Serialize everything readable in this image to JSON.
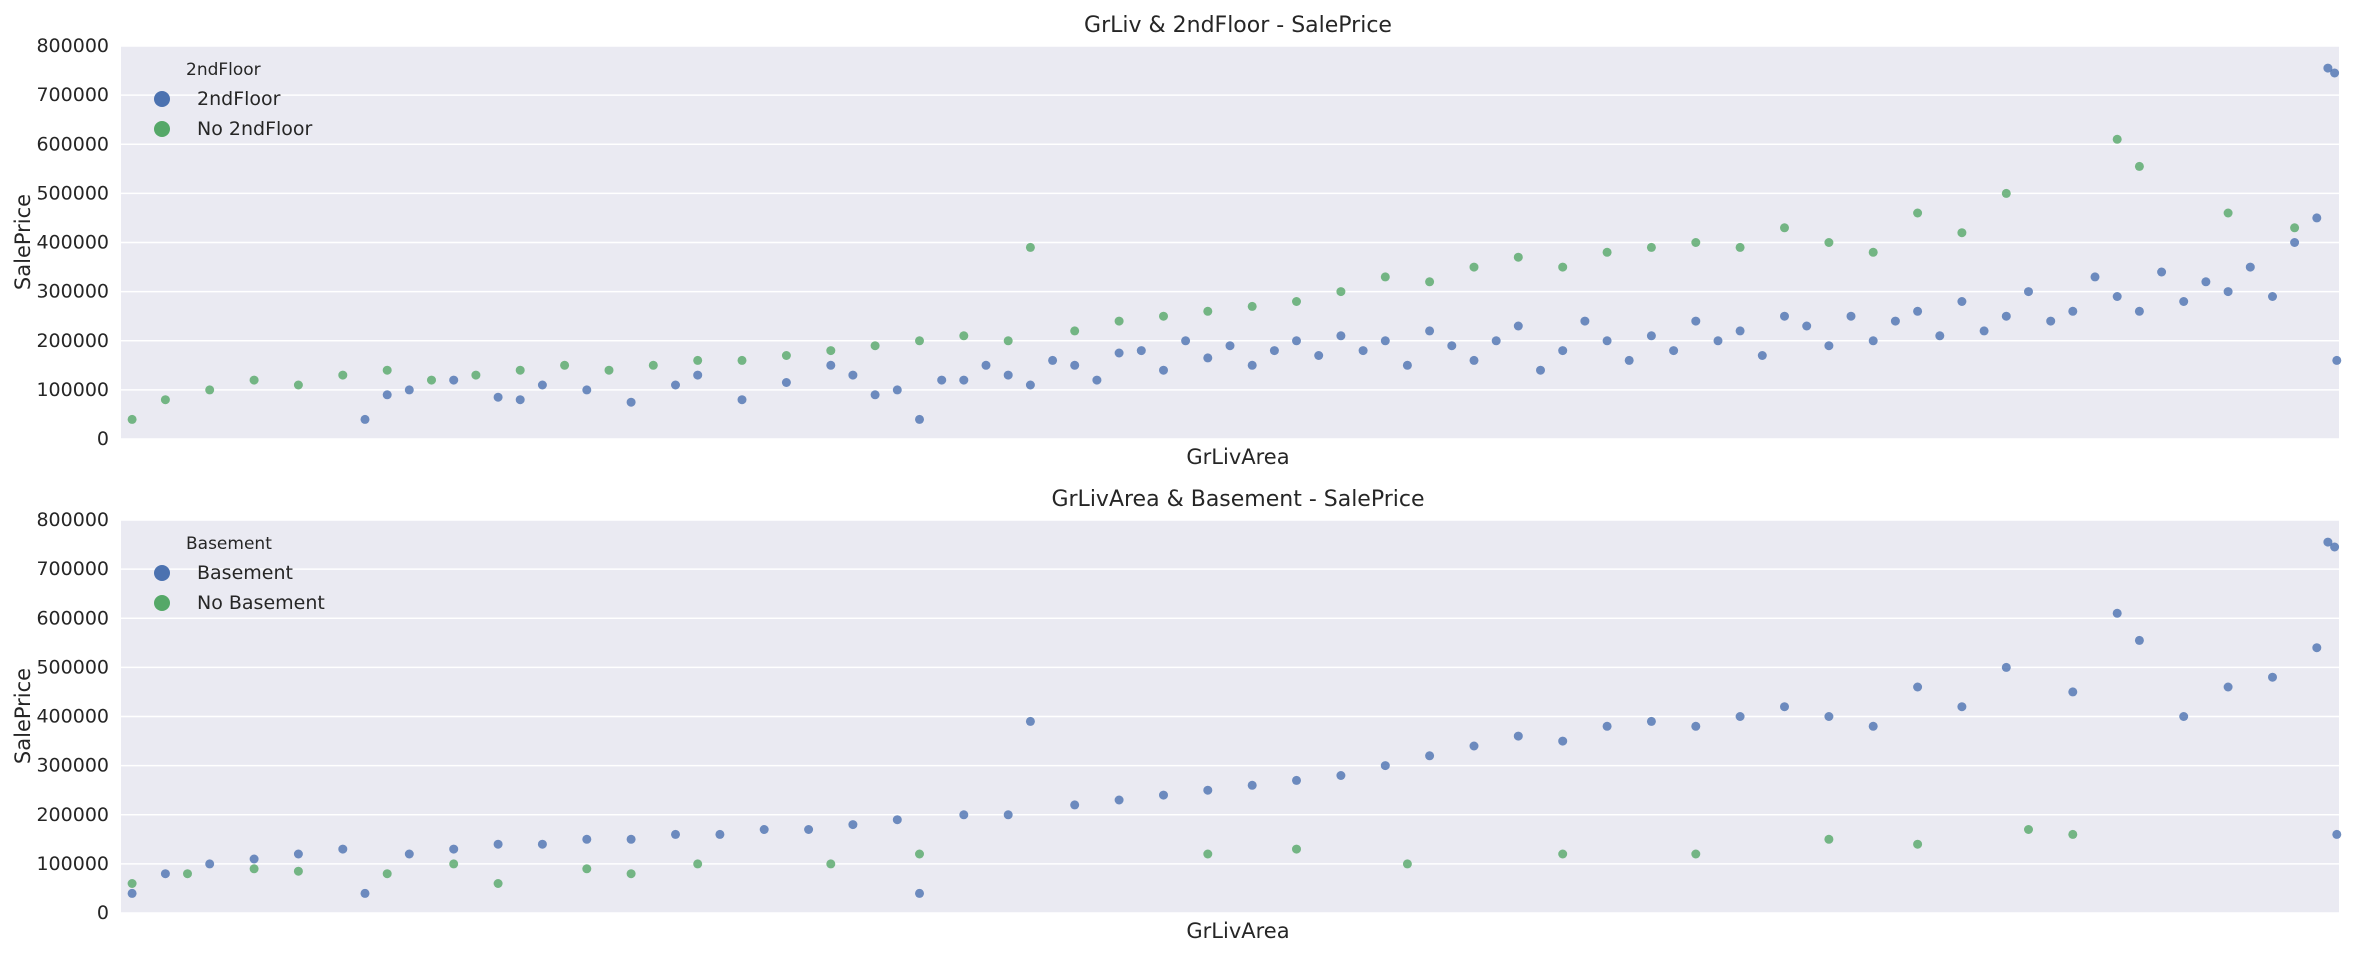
{
  "colors": {
    "background": "#eaeaf2",
    "grid": "#ffffff",
    "blue": "#4c72b0",
    "green": "#55a868"
  },
  "chart_data": [
    {
      "type": "scatter",
      "title": "GrLiv & 2ndFloor - SalePrice",
      "xlabel": "GrLivArea",
      "ylabel": "SalePrice",
      "ylim": [
        0,
        800000
      ],
      "yticks": [
        "0",
        "100000",
        "200000",
        "300000",
        "400000",
        "500000",
        "600000",
        "700000",
        "800000"
      ],
      "x_tick_labels_shown": false,
      "grid": true,
      "legend": {
        "title": "2ndFloor",
        "placement": "top-left",
        "entries": [
          {
            "label": "2ndFloor",
            "color": "#4c72b0"
          },
          {
            "label": "No 2ndFloor",
            "color": "#55a868"
          }
        ]
      },
      "series": [
        {
          "name": "2ndFloor",
          "color": "#4c72b0",
          "description": "houses with a second floor; x = GrLivArea position (0–1 rank along axis), y = SalePrice",
          "points": [
            [
              0.11,
              40000
            ],
            [
              0.12,
              90000
            ],
            [
              0.13,
              100000
            ],
            [
              0.15,
              120000
            ],
            [
              0.17,
              85000
            ],
            [
              0.18,
              80000
            ],
            [
              0.19,
              110000
            ],
            [
              0.21,
              100000
            ],
            [
              0.23,
              75000
            ],
            [
              0.25,
              110000
            ],
            [
              0.26,
              130000
            ],
            [
              0.28,
              80000
            ],
            [
              0.3,
              115000
            ],
            [
              0.32,
              150000
            ],
            [
              0.33,
              130000
            ],
            [
              0.34,
              90000
            ],
            [
              0.35,
              100000
            ],
            [
              0.36,
              40000
            ],
            [
              0.37,
              120000
            ],
            [
              0.38,
              120000
            ],
            [
              0.39,
              150000
            ],
            [
              0.4,
              130000
            ],
            [
              0.41,
              110000
            ],
            [
              0.42,
              160000
            ],
            [
              0.43,
              150000
            ],
            [
              0.44,
              120000
            ],
            [
              0.45,
              175000
            ],
            [
              0.46,
              180000
            ],
            [
              0.47,
              140000
            ],
            [
              0.48,
              200000
            ],
            [
              0.49,
              165000
            ],
            [
              0.5,
              190000
            ],
            [
              0.51,
              150000
            ],
            [
              0.52,
              180000
            ],
            [
              0.53,
              200000
            ],
            [
              0.54,
              170000
            ],
            [
              0.55,
              210000
            ],
            [
              0.56,
              180000
            ],
            [
              0.57,
              200000
            ],
            [
              0.58,
              150000
            ],
            [
              0.59,
              220000
            ],
            [
              0.6,
              190000
            ],
            [
              0.61,
              160000
            ],
            [
              0.62,
              200000
            ],
            [
              0.63,
              230000
            ],
            [
              0.64,
              140000
            ],
            [
              0.65,
              180000
            ],
            [
              0.66,
              240000
            ],
            [
              0.67,
              200000
            ],
            [
              0.68,
              160000
            ],
            [
              0.69,
              210000
            ],
            [
              0.7,
              180000
            ],
            [
              0.71,
              240000
            ],
            [
              0.72,
              200000
            ],
            [
              0.73,
              220000
            ],
            [
              0.74,
              170000
            ],
            [
              0.75,
              250000
            ],
            [
              0.76,
              230000
            ],
            [
              0.77,
              190000
            ],
            [
              0.78,
              250000
            ],
            [
              0.79,
              200000
            ],
            [
              0.8,
              240000
            ],
            [
              0.81,
              260000
            ],
            [
              0.82,
              210000
            ],
            [
              0.83,
              280000
            ],
            [
              0.84,
              220000
            ],
            [
              0.85,
              250000
            ],
            [
              0.86,
              300000
            ],
            [
              0.87,
              240000
            ],
            [
              0.88,
              260000
            ],
            [
              0.89,
              330000
            ],
            [
              0.9,
              290000
            ],
            [
              0.91,
              260000
            ],
            [
              0.92,
              340000
            ],
            [
              0.93,
              280000
            ],
            [
              0.94,
              320000
            ],
            [
              0.95,
              300000
            ],
            [
              0.96,
              350000
            ],
            [
              0.97,
              290000
            ],
            [
              0.98,
              400000
            ],
            [
              0.99,
              450000
            ],
            [
              0.995,
              755000
            ],
            [
              0.998,
              745000
            ],
            [
              0.999,
              160000
            ]
          ]
        },
        {
          "name": "No 2ndFloor",
          "color": "#55a868",
          "description": "houses without a second floor",
          "points": [
            [
              0.005,
              40000
            ],
            [
              0.02,
              80000
            ],
            [
              0.04,
              100000
            ],
            [
              0.06,
              120000
            ],
            [
              0.08,
              110000
            ],
            [
              0.1,
              130000
            ],
            [
              0.12,
              140000
            ],
            [
              0.14,
              120000
            ],
            [
              0.16,
              130000
            ],
            [
              0.18,
              140000
            ],
            [
              0.2,
              150000
            ],
            [
              0.22,
              140000
            ],
            [
              0.24,
              150000
            ],
            [
              0.26,
              160000
            ],
            [
              0.28,
              160000
            ],
            [
              0.3,
              170000
            ],
            [
              0.32,
              180000
            ],
            [
              0.34,
              190000
            ],
            [
              0.36,
              200000
            ],
            [
              0.38,
              210000
            ],
            [
              0.4,
              200000
            ],
            [
              0.41,
              390000
            ],
            [
              0.43,
              220000
            ],
            [
              0.45,
              240000
            ],
            [
              0.47,
              250000
            ],
            [
              0.49,
              260000
            ],
            [
              0.51,
              270000
            ],
            [
              0.53,
              280000
            ],
            [
              0.55,
              300000
            ],
            [
              0.57,
              330000
            ],
            [
              0.59,
              320000
            ],
            [
              0.61,
              350000
            ],
            [
              0.63,
              370000
            ],
            [
              0.65,
              350000
            ],
            [
              0.67,
              380000
            ],
            [
              0.69,
              390000
            ],
            [
              0.71,
              400000
            ],
            [
              0.73,
              390000
            ],
            [
              0.75,
              430000
            ],
            [
              0.77,
              400000
            ],
            [
              0.79,
              380000
            ],
            [
              0.81,
              460000
            ],
            [
              0.83,
              420000
            ],
            [
              0.85,
              500000
            ],
            [
              0.9,
              610000
            ],
            [
              0.91,
              555000
            ],
            [
              0.95,
              460000
            ],
            [
              0.98,
              430000
            ]
          ]
        }
      ]
    },
    {
      "type": "scatter",
      "title": "GrLivArea & Basement - SalePrice",
      "xlabel": "GrLivArea",
      "ylabel": "SalePrice",
      "ylim": [
        0,
        800000
      ],
      "yticks": [
        "0",
        "100000",
        "200000",
        "300000",
        "400000",
        "500000",
        "600000",
        "700000",
        "800000"
      ],
      "x_tick_labels_shown": false,
      "grid": true,
      "legend": {
        "title": "Basement",
        "placement": "top-left",
        "entries": [
          {
            "label": "Basement",
            "color": "#4c72b0"
          },
          {
            "label": "No Basement",
            "color": "#55a868"
          }
        ]
      },
      "series": [
        {
          "name": "Basement",
          "color": "#4c72b0",
          "description": "houses with a basement (nearly all points)",
          "points": [
            [
              0.005,
              40000
            ],
            [
              0.02,
              80000
            ],
            [
              0.04,
              100000
            ],
            [
              0.06,
              110000
            ],
            [
              0.08,
              120000
            ],
            [
              0.1,
              130000
            ],
            [
              0.11,
              40000
            ],
            [
              0.13,
              120000
            ],
            [
              0.15,
              130000
            ],
            [
              0.17,
              140000
            ],
            [
              0.19,
              140000
            ],
            [
              0.21,
              150000
            ],
            [
              0.23,
              150000
            ],
            [
              0.25,
              160000
            ],
            [
              0.27,
              160000
            ],
            [
              0.29,
              170000
            ],
            [
              0.31,
              170000
            ],
            [
              0.33,
              180000
            ],
            [
              0.35,
              190000
            ],
            [
              0.36,
              40000
            ],
            [
              0.38,
              200000
            ],
            [
              0.4,
              200000
            ],
            [
              0.41,
              390000
            ],
            [
              0.43,
              220000
            ],
            [
              0.45,
              230000
            ],
            [
              0.47,
              240000
            ],
            [
              0.49,
              250000
            ],
            [
              0.51,
              260000
            ],
            [
              0.53,
              270000
            ],
            [
              0.55,
              280000
            ],
            [
              0.57,
              300000
            ],
            [
              0.59,
              320000
            ],
            [
              0.61,
              340000
            ],
            [
              0.63,
              360000
            ],
            [
              0.65,
              350000
            ],
            [
              0.67,
              380000
            ],
            [
              0.69,
              390000
            ],
            [
              0.71,
              380000
            ],
            [
              0.73,
              400000
            ],
            [
              0.75,
              420000
            ],
            [
              0.77,
              400000
            ],
            [
              0.79,
              380000
            ],
            [
              0.81,
              460000
            ],
            [
              0.83,
              420000
            ],
            [
              0.85,
              500000
            ],
            [
              0.88,
              450000
            ],
            [
              0.9,
              610000
            ],
            [
              0.91,
              555000
            ],
            [
              0.93,
              400000
            ],
            [
              0.95,
              460000
            ],
            [
              0.97,
              480000
            ],
            [
              0.99,
              540000
            ],
            [
              0.995,
              755000
            ],
            [
              0.998,
              745000
            ],
            [
              0.999,
              160000
            ]
          ]
        },
        {
          "name": "No Basement",
          "color": "#55a868",
          "description": "houses without a basement (few points, mostly low price)",
          "points": [
            [
              0.005,
              60000
            ],
            [
              0.03,
              80000
            ],
            [
              0.06,
              90000
            ],
            [
              0.08,
              85000
            ],
            [
              0.12,
              80000
            ],
            [
              0.15,
              100000
            ],
            [
              0.17,
              60000
            ],
            [
              0.21,
              90000
            ],
            [
              0.23,
              80000
            ],
            [
              0.26,
              100000
            ],
            [
              0.32,
              100000
            ],
            [
              0.36,
              120000
            ],
            [
              0.49,
              120000
            ],
            [
              0.53,
              130000
            ],
            [
              0.58,
              100000
            ],
            [
              0.65,
              120000
            ],
            [
              0.71,
              120000
            ],
            [
              0.77,
              150000
            ],
            [
              0.81,
              140000
            ],
            [
              0.86,
              170000
            ],
            [
              0.88,
              160000
            ]
          ]
        }
      ]
    }
  ]
}
